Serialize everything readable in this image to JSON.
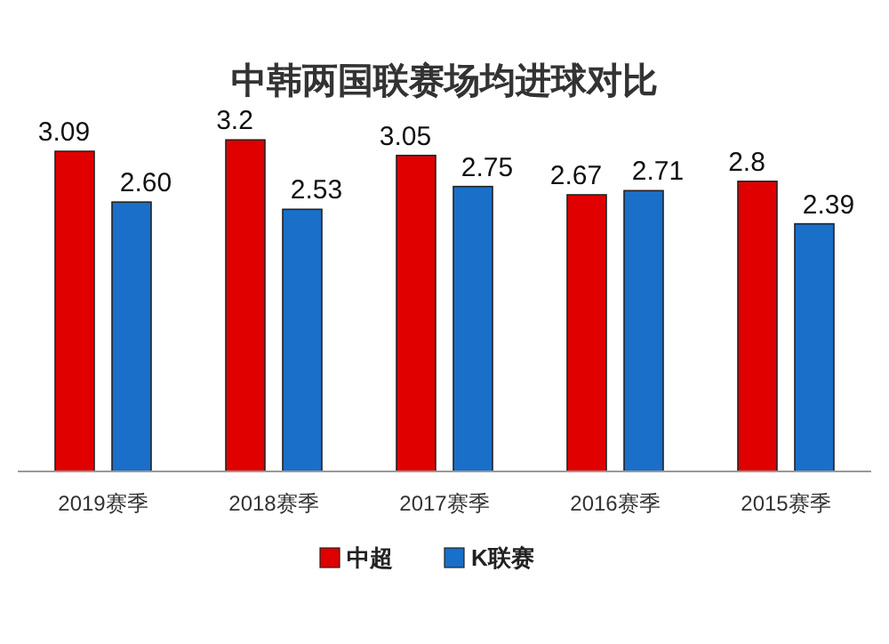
{
  "chart_data": {
    "type": "bar",
    "title": "中韩两国联赛场均进球对比",
    "categories": [
      "2019赛季",
      "2018赛季",
      "2017赛季",
      "2016赛季",
      "2015赛季"
    ],
    "series": [
      {
        "name": "中超",
        "color": "#e00000",
        "values": [
          3.09,
          3.2,
          3.05,
          2.67,
          2.8
        ],
        "value_labels": [
          "3.09",
          "3.2",
          "3.05",
          "2.67",
          "2.8"
        ]
      },
      {
        "name": "K联赛",
        "color": "#1a6fc9",
        "values": [
          2.6,
          2.53,
          2.75,
          2.71,
          2.39
        ],
        "value_labels": [
          "2.60",
          "2.53",
          "2.75",
          "2.71",
          "2.39"
        ]
      }
    ],
    "legend": "bottom"
  }
}
